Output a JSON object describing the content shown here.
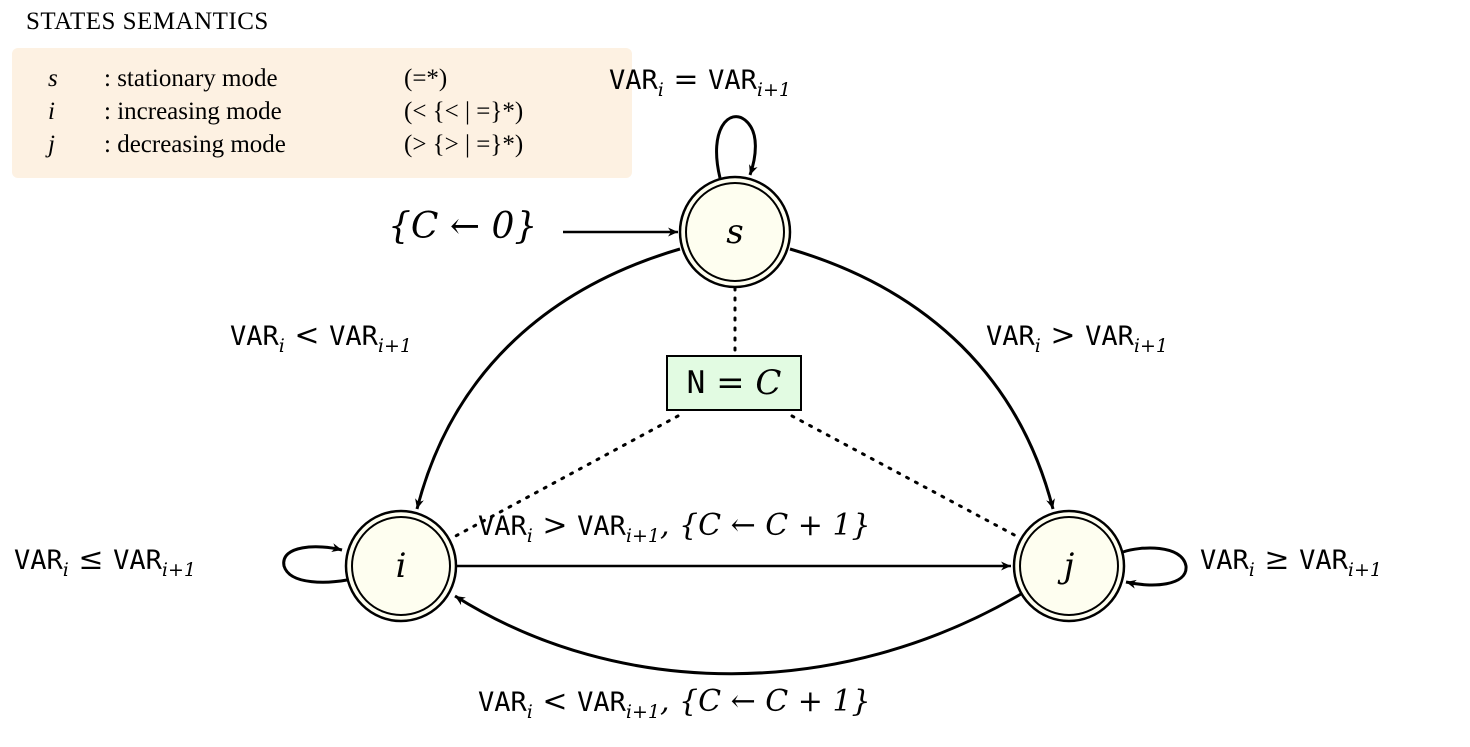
{
  "legend": {
    "title": "STATES SEMANTICS",
    "rows": [
      {
        "symbol": "s",
        "description": ": stationary mode",
        "regex": "(=*)"
      },
      {
        "symbol": "i",
        "description": ": increasing mode",
        "regex": "(< {< | =}*)"
      },
      {
        "symbol": "j",
        "description": ": decreasing mode",
        "regex": "(> {> | =}*)"
      }
    ]
  },
  "states": [
    {
      "id": "s",
      "label": "s",
      "accepting": true,
      "initial": true
    },
    {
      "id": "i",
      "label": "i",
      "accepting": true
    },
    {
      "id": "j",
      "label": "j",
      "accepting": true
    }
  ],
  "initial_arrow": {
    "update": "{C ← 0}"
  },
  "transitions": [
    {
      "from": "s",
      "to": "s",
      "var": "VAR",
      "sub": "i",
      "op": "=",
      "var2": "VAR",
      "sub2": "i+1",
      "update": ""
    },
    {
      "from": "s",
      "to": "i",
      "var": "VAR",
      "sub": "i",
      "op": "<",
      "var2": "VAR",
      "sub2": "i+1",
      "update": ""
    },
    {
      "from": "s",
      "to": "j",
      "var": "VAR",
      "sub": "i",
      "op": ">",
      "var2": "VAR",
      "sub2": "i+1",
      "update": ""
    },
    {
      "from": "i",
      "to": "i",
      "var": "VAR",
      "sub": "i",
      "op": "≤",
      "var2": "VAR",
      "sub2": "i+1",
      "update": ""
    },
    {
      "from": "j",
      "to": "j",
      "var": "VAR",
      "sub": "i",
      "op": "≥",
      "var2": "VAR",
      "sub2": "i+1",
      "update": ""
    },
    {
      "from": "i",
      "to": "j",
      "var": "VAR",
      "sub": "i",
      "op": ">",
      "var2": "VAR",
      "sub2": "i+1",
      "update": ", {C ← C + 1}"
    },
    {
      "from": "j",
      "to": "i",
      "var": "VAR",
      "sub": "i",
      "op": "<",
      "var2": "VAR",
      "sub2": "i+1",
      "update": ", {C ← C + 1}"
    }
  ],
  "result_box": {
    "var": "N",
    "op": " = ",
    "value": "C"
  },
  "colors": {
    "legend_background": "#fdf1e2",
    "state_fill": "#fefef0",
    "result_box_fill": "#e2fbe2",
    "stroke": "#000000"
  }
}
